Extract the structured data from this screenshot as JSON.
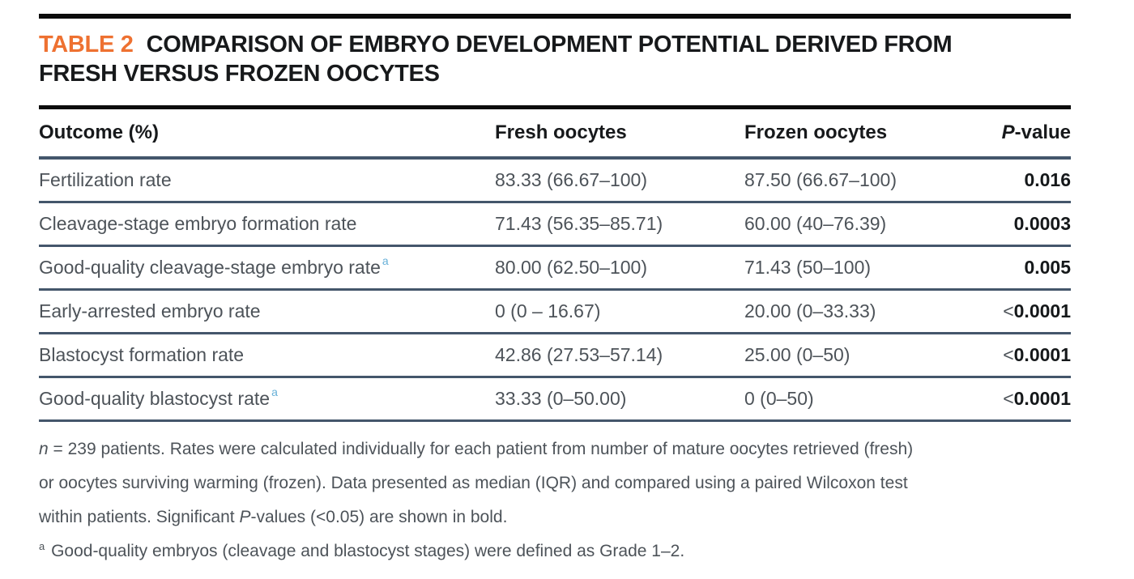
{
  "colors": {
    "accent_orange": "#ee7131",
    "rule_black": "#0c0c0c",
    "rule_slate": "#44566b",
    "body_text_gray": "#4d5359",
    "heading_black": "#17191b",
    "superscript_blue": "#67b0d8"
  },
  "header": {
    "table_label": "TABLE 2",
    "title_line1": "COMPARISON OF EMBRYO DEVELOPMENT POTENTIAL DERIVED FROM",
    "title_line2": "FRESH VERSUS FROZEN OOCYTES"
  },
  "table": {
    "columns": [
      "Outcome (%)",
      "Fresh oocytes",
      "Frozen oocytes"
    ],
    "p_column": {
      "italic": "P",
      "rest": "-value"
    },
    "rows": [
      {
        "outcome": "Fertilization rate",
        "sup": "",
        "fresh": "83.33 (66.67–100)",
        "frozen": "87.50 (66.67–100)",
        "p_prefix": "",
        "p": "0.016"
      },
      {
        "outcome": "Cleavage-stage embryo formation rate",
        "sup": "",
        "fresh": "71.43 (56.35–85.71)",
        "frozen": "60.00 (40–76.39)",
        "p_prefix": "",
        "p": "0.0003"
      },
      {
        "outcome": "Good-quality cleavage-stage embryo rate",
        "sup": "a",
        "fresh": "80.00 (62.50–100)",
        "frozen": "71.43 (50–100)",
        "p_prefix": "",
        "p": "0.005"
      },
      {
        "outcome": "Early-arrested embryo rate",
        "sup": "",
        "fresh": "0 (0 – 16.67)",
        "frozen": "20.00 (0–33.33)",
        "p_prefix": "<",
        "p": "0.0001"
      },
      {
        "outcome": "Blastocyst formation rate",
        "sup": "",
        "fresh": "42.86 (27.53–57.14)",
        "frozen": "25.00 (0–50)",
        "p_prefix": "<",
        "p": "0.0001"
      },
      {
        "outcome": "Good-quality blastocyst rate",
        "sup": "a",
        "fresh": "33.33 (0–50.00)",
        "frozen": "0 (0–50)",
        "p_prefix": "<",
        "p": "0.0001"
      }
    ]
  },
  "footnotes": {
    "line1_italic": "n",
    "line1_rest": " = 239 patients. Rates were calculated individually for each patient from number of mature oocytes retrieved (fresh)",
    "line2": "or oocytes surviving warming (frozen). Data presented as median (IQR) and compared using a paired Wilcoxon test",
    "line3_pre": "within patients. Significant ",
    "line3_italic": "P",
    "line3_post": "-values (<0.05) are shown in bold.",
    "line4_sup": "a",
    "line4_text": " Good-quality embryos (cleavage and blastocyst stages) were defined as Grade 1–2."
  }
}
